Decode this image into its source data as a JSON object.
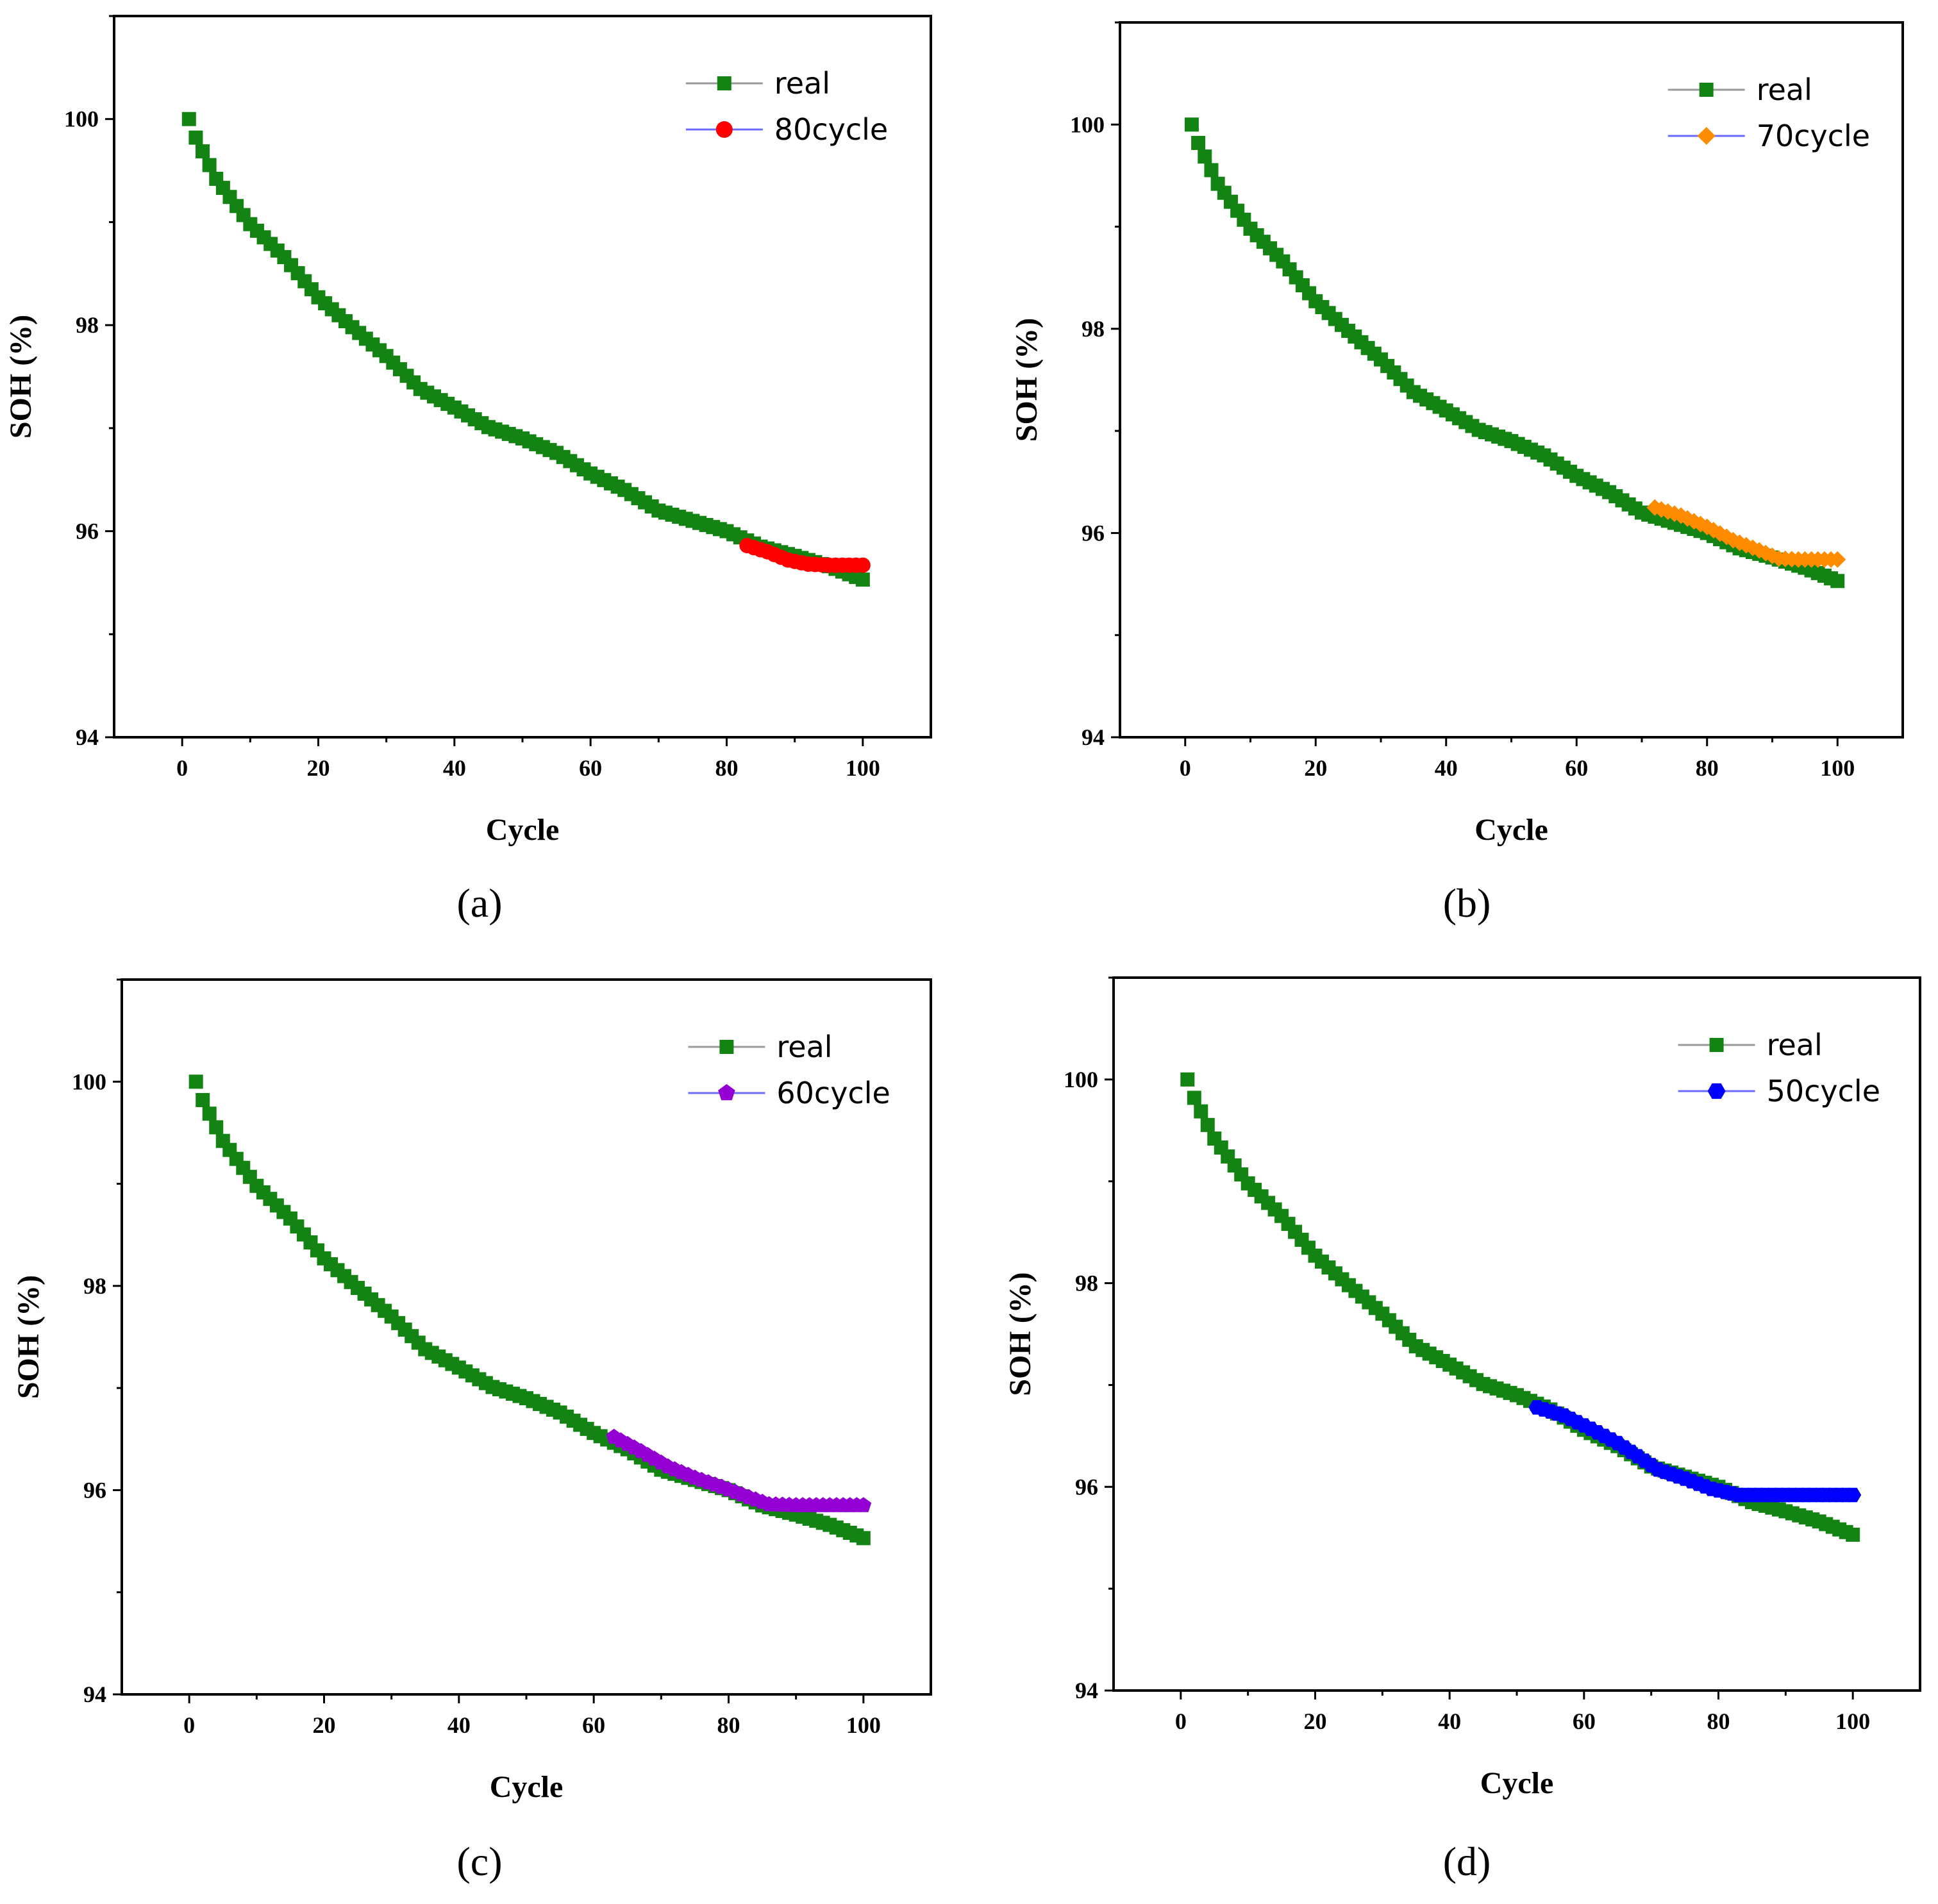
{
  "colors": {
    "real": "#138313",
    "legend_line": "#9a9a9a",
    "predicted_legend_line": "#6b6bff",
    "axis": "#000000"
  },
  "axes": {
    "xlabel": "Cycle",
    "ylabel": "SOH (%)",
    "xlim": [
      -10,
      110
    ],
    "ylim": [
      94,
      101
    ],
    "x_ticks": [
      0,
      20,
      40,
      60,
      80,
      100
    ],
    "y_ticks": [
      94,
      96,
      98,
      100
    ]
  },
  "chart_data": [
    {
      "type": "line",
      "caption": "(a)",
      "title": "",
      "xlabel": "Cycle",
      "ylabel": "SOH (%)",
      "xlim": [
        -10,
        110
      ],
      "ylim": [
        94,
        101
      ],
      "legend_position": "top-right",
      "series": [
        {
          "name": "real",
          "color": "#138313",
          "marker": "square",
          "x_range": [
            1,
            100
          ],
          "points": [
            [
              1,
              100
            ],
            [
              2,
              99.82
            ],
            [
              5,
              99.42
            ],
            [
              10,
              98.98
            ],
            [
              15,
              98.66
            ],
            [
              20,
              98.27
            ],
            [
              25,
              97.98
            ],
            [
              30,
              97.7
            ],
            [
              35,
              97.38
            ],
            [
              40,
              97.2
            ],
            [
              45,
              97.01
            ],
            [
              50,
              96.9
            ],
            [
              55,
              96.76
            ],
            [
              60,
              96.56
            ],
            [
              65,
              96.4
            ],
            [
              70,
              96.2
            ],
            [
              75,
              96.1
            ],
            [
              80,
              96.0
            ],
            [
              85,
              95.85
            ],
            [
              90,
              95.76
            ],
            [
              95,
              95.66
            ],
            [
              100,
              95.53
            ]
          ]
        },
        {
          "name": "80cycle",
          "color": "#ff0000",
          "marker": "circle",
          "x_range": [
            83,
            100
          ],
          "points": [
            [
              83,
              95.86
            ],
            [
              86,
              95.8
            ],
            [
              89,
              95.72
            ],
            [
              92,
              95.68
            ],
            [
              95,
              95.67
            ],
            [
              100,
              95.67
            ]
          ]
        }
      ]
    },
    {
      "type": "line",
      "caption": "(b)",
      "title": "",
      "xlabel": "Cycle",
      "ylabel": "SOH (%)",
      "xlim": [
        -10,
        110
      ],
      "ylim": [
        94,
        101
      ],
      "legend_position": "top-right",
      "series": [
        {
          "name": "real",
          "color": "#138313",
          "marker": "square",
          "x_range": [
            1,
            100
          ],
          "points": [
            [
              1,
              100
            ],
            [
              2,
              99.82
            ],
            [
              5,
              99.42
            ],
            [
              10,
              98.98
            ],
            [
              15,
              98.66
            ],
            [
              20,
              98.27
            ],
            [
              25,
              97.98
            ],
            [
              30,
              97.7
            ],
            [
              35,
              97.38
            ],
            [
              40,
              97.2
            ],
            [
              45,
              97.01
            ],
            [
              50,
              96.9
            ],
            [
              55,
              96.76
            ],
            [
              60,
              96.56
            ],
            [
              65,
              96.4
            ],
            [
              70,
              96.2
            ],
            [
              75,
              96.1
            ],
            [
              80,
              96.0
            ],
            [
              85,
              95.85
            ],
            [
              90,
              95.76
            ],
            [
              95,
              95.66
            ],
            [
              100,
              95.53
            ]
          ]
        },
        {
          "name": "70cycle",
          "color": "#ff8c00",
          "marker": "diamond",
          "x_range": [
            72,
            100
          ],
          "points": [
            [
              72,
              96.25
            ],
            [
              76,
              96.17
            ],
            [
              80,
              96.06
            ],
            [
              84,
              95.93
            ],
            [
              88,
              95.83
            ],
            [
              91,
              95.75
            ],
            [
              94,
              95.74
            ],
            [
              100,
              95.74
            ]
          ]
        }
      ]
    },
    {
      "type": "line",
      "caption": "(c)",
      "title": "",
      "xlabel": "Cycle",
      "ylabel": "SOH (%)",
      "xlim": [
        -10,
        110
      ],
      "ylim": [
        94,
        101
      ],
      "legend_position": "top-right",
      "series": [
        {
          "name": "real",
          "color": "#138313",
          "marker": "square",
          "x_range": [
            1,
            100
          ],
          "points": [
            [
              1,
              100
            ],
            [
              2,
              99.82
            ],
            [
              5,
              99.42
            ],
            [
              10,
              98.98
            ],
            [
              15,
              98.66
            ],
            [
              20,
              98.27
            ],
            [
              25,
              97.98
            ],
            [
              30,
              97.7
            ],
            [
              35,
              97.38
            ],
            [
              40,
              97.2
            ],
            [
              45,
              97.01
            ],
            [
              50,
              96.9
            ],
            [
              55,
              96.76
            ],
            [
              60,
              96.56
            ],
            [
              65,
              96.4
            ],
            [
              70,
              96.2
            ],
            [
              75,
              96.1
            ],
            [
              80,
              96.0
            ],
            [
              85,
              95.85
            ],
            [
              90,
              95.76
            ],
            [
              95,
              95.66
            ],
            [
              100,
              95.53
            ]
          ]
        },
        {
          "name": "60cycle",
          "color": "#9400d3",
          "marker": "pentagon",
          "x_range": [
            63,
            100
          ],
          "points": [
            [
              63,
              96.52
            ],
            [
              67,
              96.38
            ],
            [
              71,
              96.23
            ],
            [
              75,
              96.12
            ],
            [
              79,
              96.03
            ],
            [
              83,
              95.93
            ],
            [
              86,
              95.86
            ],
            [
              90,
              95.85
            ],
            [
              100,
              95.85
            ]
          ]
        }
      ]
    },
    {
      "type": "line",
      "caption": "(d)",
      "title": "",
      "xlabel": "Cycle",
      "ylabel": "SOH (%)",
      "xlim": [
        -10,
        110
      ],
      "ylim": [
        94,
        101
      ],
      "legend_position": "top-right",
      "series": [
        {
          "name": "real",
          "color": "#138313",
          "marker": "square",
          "x_range": [
            1,
            100
          ],
          "points": [
            [
              1,
              100
            ],
            [
              2,
              99.82
            ],
            [
              5,
              99.42
            ],
            [
              10,
              98.98
            ],
            [
              15,
              98.66
            ],
            [
              20,
              98.27
            ],
            [
              25,
              97.98
            ],
            [
              30,
              97.7
            ],
            [
              35,
              97.38
            ],
            [
              40,
              97.2
            ],
            [
              45,
              97.01
            ],
            [
              50,
              96.9
            ],
            [
              55,
              96.76
            ],
            [
              60,
              96.56
            ],
            [
              65,
              96.4
            ],
            [
              70,
              96.2
            ],
            [
              75,
              96.1
            ],
            [
              80,
              96.0
            ],
            [
              85,
              95.85
            ],
            [
              90,
              95.76
            ],
            [
              95,
              95.66
            ],
            [
              100,
              95.53
            ]
          ]
        },
        {
          "name": "50cycle",
          "color": "#0000ff",
          "marker": "hexagon",
          "x_range": [
            53,
            100
          ],
          "points": [
            [
              53,
              96.78
            ],
            [
              57,
              96.7
            ],
            [
              61,
              96.57
            ],
            [
              65,
              96.43
            ],
            [
              68,
              96.3
            ],
            [
              71,
              96.17
            ],
            [
              75,
              96.08
            ],
            [
              79,
              95.98
            ],
            [
              83,
              95.92
            ],
            [
              87,
              95.92
            ],
            [
              100,
              95.92
            ]
          ]
        }
      ]
    }
  ]
}
